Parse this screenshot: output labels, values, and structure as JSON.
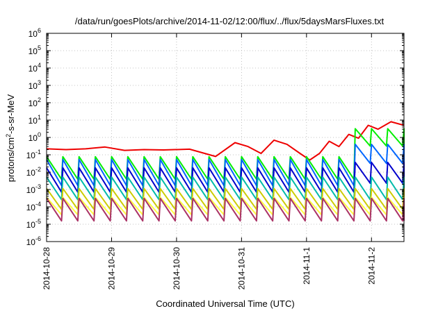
{
  "chart_data": {
    "type": "line",
    "title": "/data/run/goesPlots/archive/2014-11-02/12:00/flux/../flux/5daysMarsFluxes.txt",
    "xlabel": "Coordinated Universal Time (UTC)",
    "ylabel_parts": [
      "protons/cm",
      "2",
      "-s-sr-MeV"
    ],
    "x_axis": {
      "start": "2014-10-28",
      "end": "2014-11-02 12:00",
      "ticks": [
        "2014-10-28",
        "2014-10-29",
        "2014-10-30",
        "2014-10-31",
        "2014-11-1",
        "2014-11-2"
      ]
    },
    "y_axis": {
      "scale": "log",
      "ylim": [
        1e-06,
        1000000.0
      ],
      "tick_labels": [
        {
          "base": "10",
          "exp": "-6"
        },
        {
          "base": "10",
          "exp": "-5"
        },
        {
          "base": "10",
          "exp": "-4"
        },
        {
          "base": "10",
          "exp": "-3"
        },
        {
          "base": "10",
          "exp": "-2"
        },
        {
          "base": "10",
          "exp": "-1"
        },
        {
          "base": "10",
          "exp": "0"
        },
        {
          "base": "10",
          "exp": "1"
        },
        {
          "base": "10",
          "exp": "2"
        },
        {
          "base": "10",
          "exp": "3"
        },
        {
          "base": "10",
          "exp": "4"
        },
        {
          "base": "10",
          "exp": "5"
        },
        {
          "base": "10",
          "exp": "6"
        }
      ]
    },
    "grid": true,
    "series": [
      {
        "color": "#ee0000",
        "x": [
          0,
          0.3,
          0.6,
          0.9,
          1.2,
          1.5,
          1.8,
          2.2,
          2.6,
          2.9,
          3.1,
          3.3,
          3.5,
          3.7,
          3.9,
          4.05,
          4.2,
          4.35,
          4.5,
          4.65,
          4.8,
          4.95,
          5.1,
          5.3,
          5.5
        ],
        "y": [
          0.22,
          0.2,
          0.22,
          0.28,
          0.18,
          0.2,
          0.19,
          0.21,
          0.08,
          0.5,
          0.3,
          0.12,
          0.7,
          0.4,
          0.12,
          0.05,
          0.12,
          0.6,
          0.3,
          1.5,
          0.9,
          5,
          3,
          8,
          5
        ]
      },
      {
        "color": "#00ee00",
        "base": 0.015,
        "amp": 1.3,
        "period": 0.25,
        "break_x": 4.7,
        "late_base": 0.9,
        "late_amp": 1.0
      },
      {
        "color": "#0066ff",
        "base": 0.008,
        "amp": 1.5,
        "period": 0.25,
        "break_x": 4.7,
        "late_base": 0.1,
        "late_amp": 1.1
      },
      {
        "color": "#0000cc",
        "base": 0.003,
        "amp": 1.4,
        "period": 0.25,
        "break_x": 4.7,
        "late_base": 0.008,
        "late_amp": 1.2
      },
      {
        "color": "#00bbaa",
        "base": 0.001,
        "amp": 1.3,
        "period": 0.25
      },
      {
        "color": "#cccc00",
        "base": 0.00025,
        "amp": 1.2,
        "period": 0.25
      },
      {
        "color": "#ffff44",
        "base": 0.0001,
        "amp": 1.0,
        "period": 0.25
      },
      {
        "color": "#aa3366",
        "base": 6e-05,
        "amp": 1.3,
        "period": 0.25
      }
    ]
  }
}
